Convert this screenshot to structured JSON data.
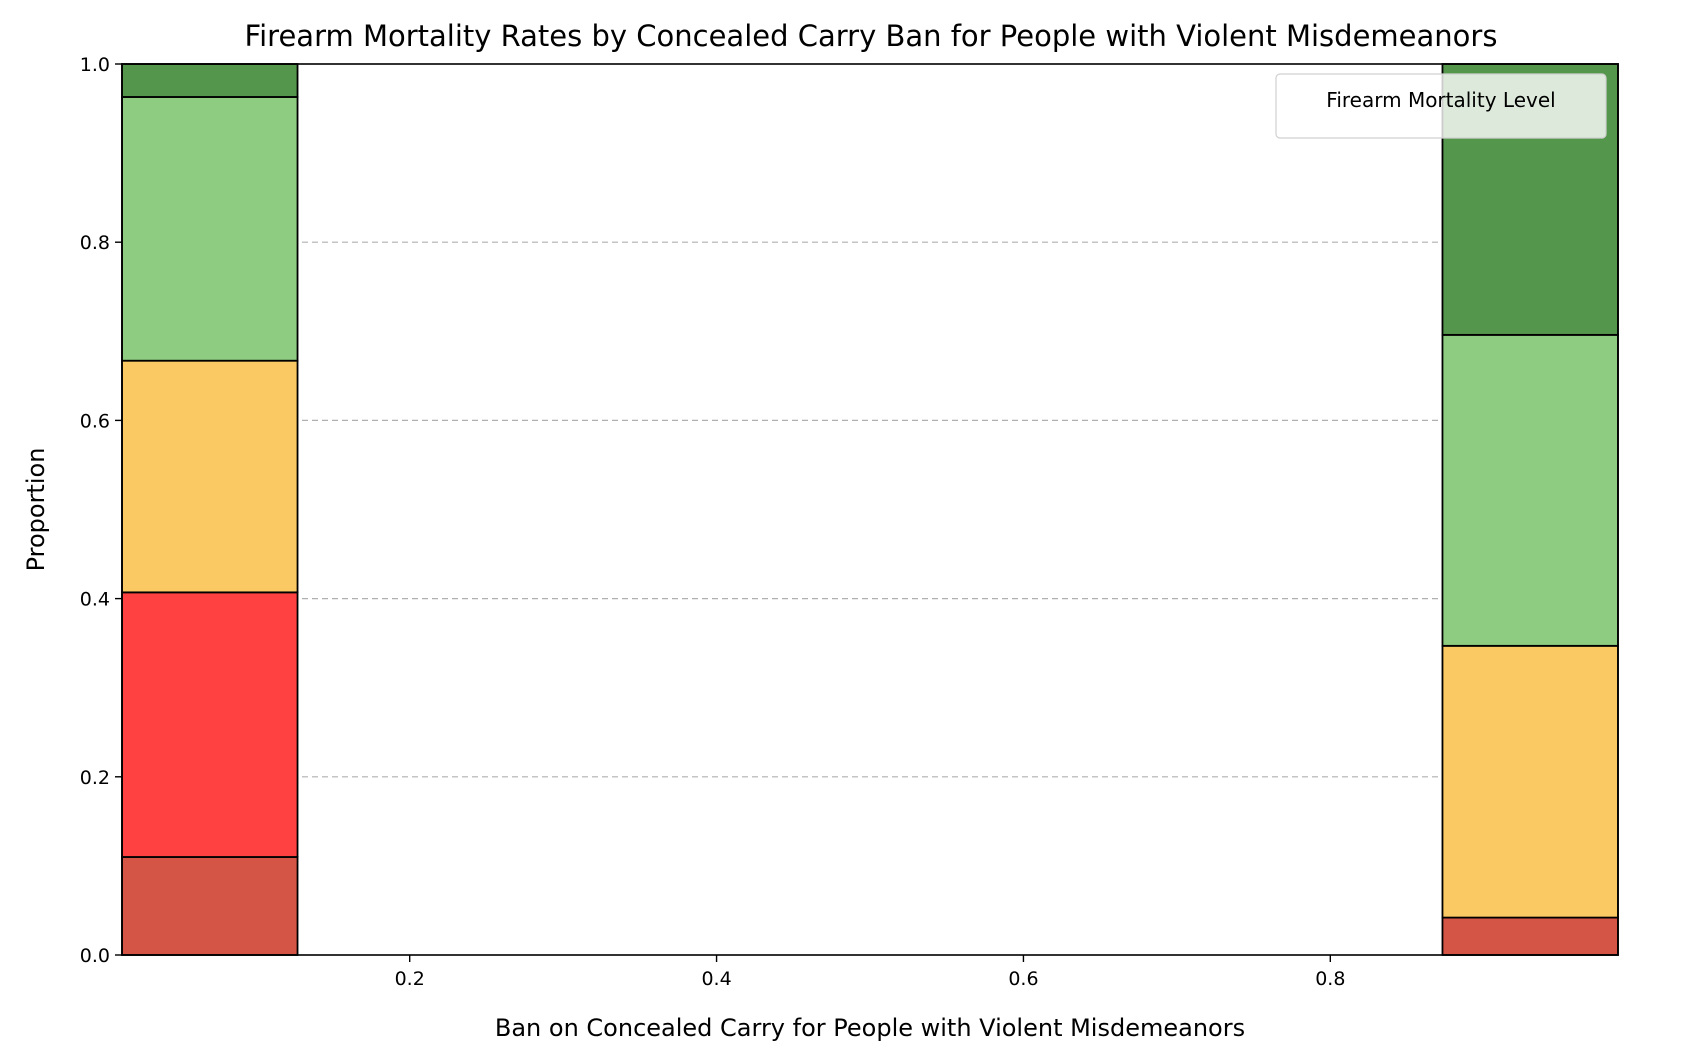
{
  "chart_data": {
    "type": "bar",
    "stacked": true,
    "normalized": true,
    "title": "Firearm Mortality Rates by Concealed Carry Ban for People with Violent Misdemeanors",
    "xlabel": "Ban on Concealed Carry for People with Violent Misdemeanors",
    "ylabel": "Proportion",
    "xlim": [
      0.0125,
      0.9875
    ],
    "ylim": [
      0,
      1
    ],
    "x_ticks": [
      "0.2",
      "0.4",
      "0.6",
      "0.8"
    ],
    "y_ticks": [
      "0.0",
      "0.2",
      "0.4",
      "0.6",
      "0.8",
      "1.0"
    ],
    "grid": {
      "y": true,
      "style": "dashed"
    },
    "legend": {
      "title": "Firearm Mortality Level",
      "placement": "top-right",
      "entries": []
    },
    "bins": [
      {
        "x_start": 0.0125,
        "x_end": 0.1269
      },
      {
        "x_start": 0.8731,
        "x_end": 0.9875
      }
    ],
    "series": [
      {
        "color": "#d45546",
        "values": [
          0.11,
          0.042
        ]
      },
      {
        "color": "#ff4141",
        "values": [
          0.297,
          0.0
        ]
      },
      {
        "color": "#fbc964",
        "values": [
          0.26,
          0.305
        ]
      },
      {
        "color": "#8ecc81",
        "values": [
          0.296,
          0.349
        ]
      },
      {
        "color": "#54964c",
        "values": [
          0.037,
          0.304
        ]
      }
    ]
  }
}
